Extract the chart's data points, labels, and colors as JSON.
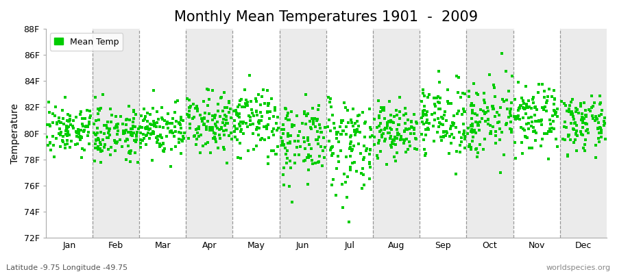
{
  "title": "Monthly Mean Temperatures 1901  -  2009",
  "ylabel": "Temperature",
  "xlabel_months": [
    "Jan",
    "Feb",
    "Mar",
    "Apr",
    "May",
    "Jun",
    "Jul",
    "Aug",
    "Sep",
    "Oct",
    "Nov",
    "Dec"
  ],
  "ylim": [
    72,
    88
  ],
  "yticks": [
    72,
    74,
    76,
    78,
    80,
    82,
    84,
    86,
    88
  ],
  "ytick_labels": [
    "72F",
    "74F",
    "76F",
    "78F",
    "80F",
    "82F",
    "84F",
    "86F",
    "88F"
  ],
  "dot_color": "#00CC00",
  "dot_size": 3.0,
  "marker": "s",
  "legend_label": "Mean Temp",
  "footer_left": "Latitude -9.75 Longitude -49.75",
  "footer_right": "worldspecies.org",
  "background_color": "#FFFFFF",
  "band_color_light": "#FFFFFF",
  "band_color_dark": "#EBEBEB",
  "dashed_line_color": "#808080",
  "title_fontsize": 15,
  "ylabel_fontsize": 10,
  "tick_fontsize": 9,
  "footer_fontsize": 8,
  "num_years": 109,
  "monthly_means": [
    80.3,
    80.1,
    80.3,
    81.0,
    80.8,
    79.6,
    79.5,
    80.2,
    81.0,
    81.2,
    81.1,
    80.7
  ],
  "monthly_stds": [
    0.9,
    1.0,
    1.0,
    1.1,
    1.4,
    1.5,
    1.7,
    1.1,
    1.3,
    1.4,
    1.2,
    1.0
  ],
  "seed": 7
}
